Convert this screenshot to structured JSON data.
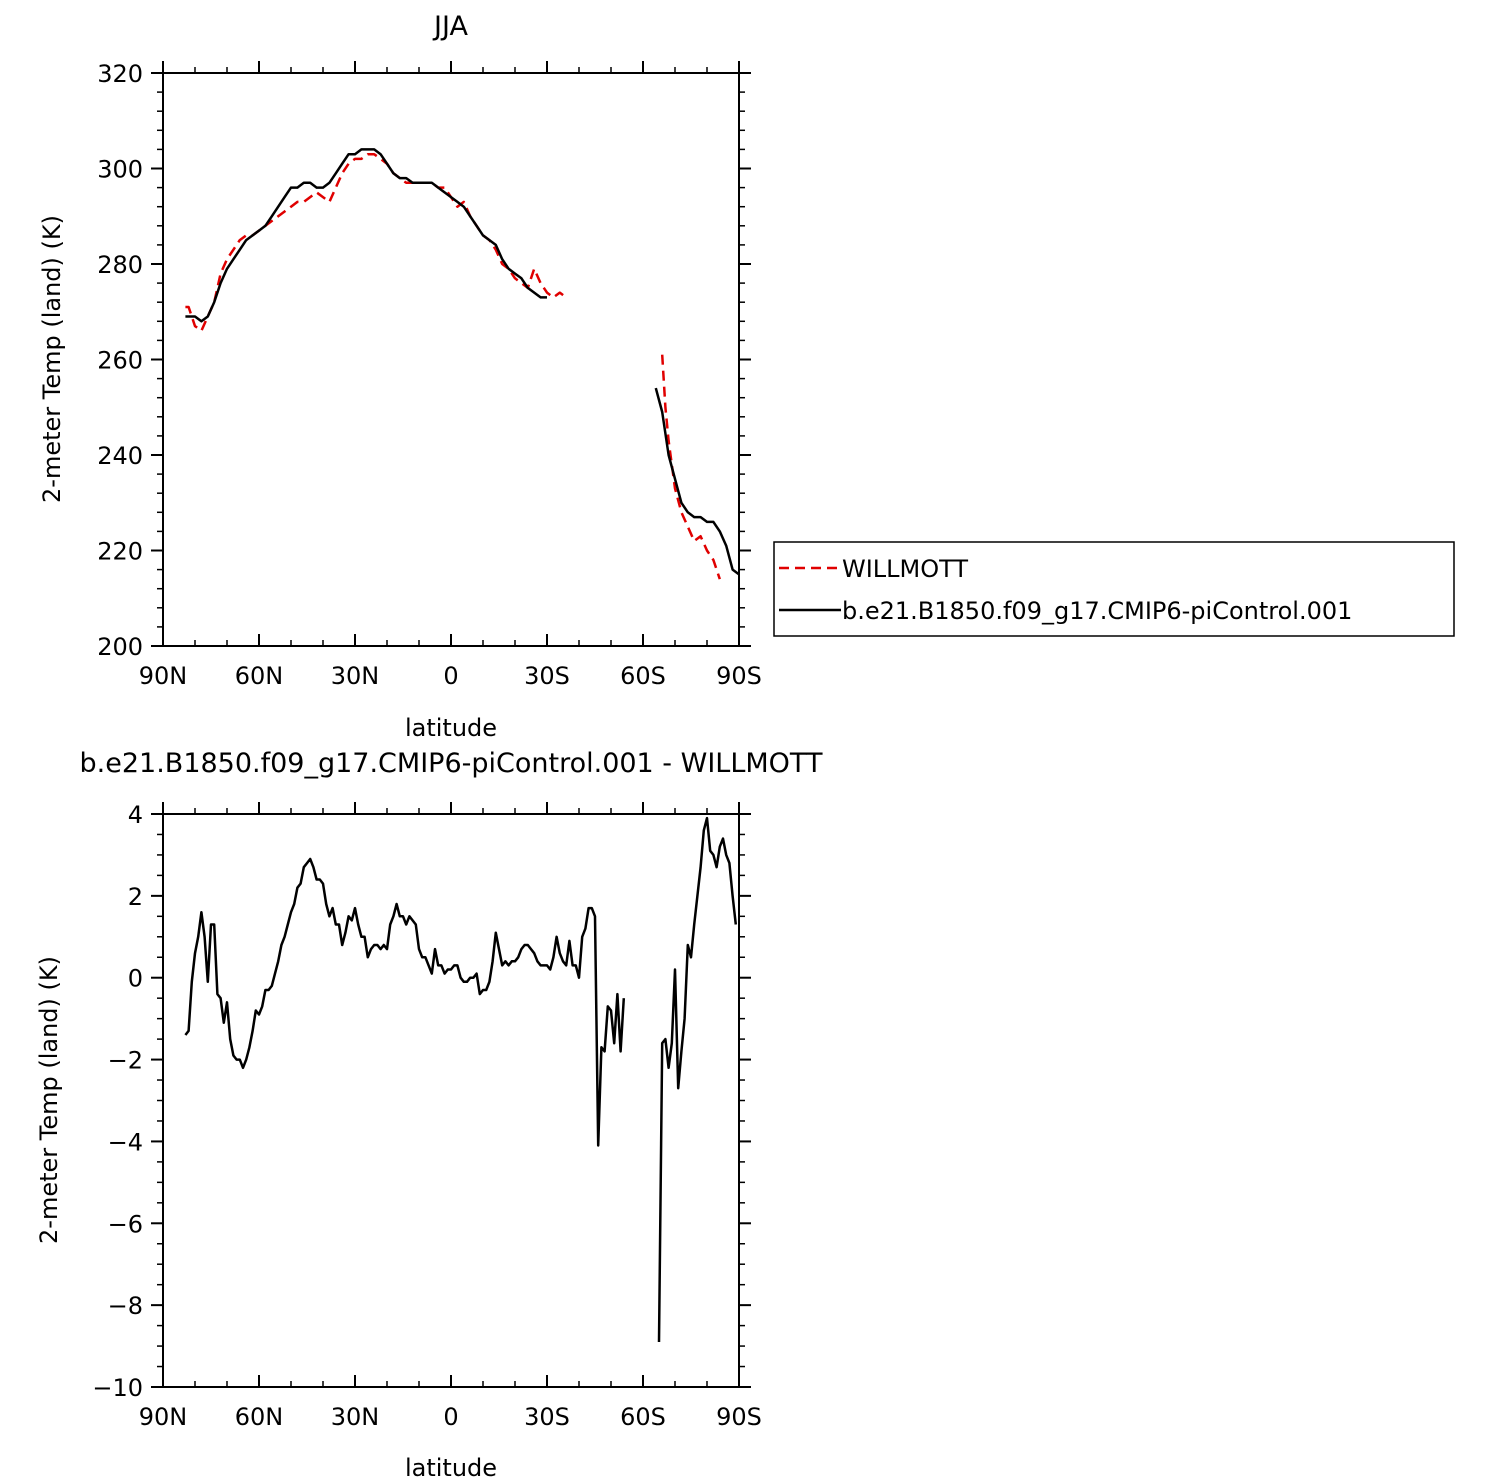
{
  "chart_data": [
    {
      "type": "line",
      "title": "JJA",
      "xlabel": "latitude",
      "ylabel": "2-meter Temp (land) (K)",
      "xlim": [
        90,
        -90
      ],
      "ylim": [
        200,
        320
      ],
      "xticks": [
        90,
        60,
        30,
        0,
        -30,
        -60,
        -90
      ],
      "xtick_labels": [
        "90N",
        "60N",
        "30N",
        "0",
        "30S",
        "60S",
        "90S"
      ],
      "yticks": [
        200,
        220,
        240,
        260,
        280,
        300,
        320
      ],
      "ytick_labels": [
        "200",
        "220",
        "240",
        "260",
        "280",
        "300",
        "320"
      ],
      "grid": false,
      "legend_position": "right",
      "series": [
        {
          "name": "WILLMOTT",
          "color": "#e00000",
          "dash": "dashed",
          "x": [
            83,
            82,
            80,
            78,
            76,
            74,
            72,
            70,
            68,
            66,
            64,
            62,
            60,
            58,
            56,
            54,
            52,
            50,
            48,
            46,
            44,
            42,
            40,
            38,
            36,
            34,
            32,
            30,
            28,
            26,
            24,
            22,
            20,
            18,
            16,
            14,
            12,
            10,
            8,
            6,
            4,
            2,
            0,
            -2,
            -4,
            -6,
            -8,
            -10,
            -12,
            -14,
            -16,
            -18,
            -20,
            -22,
            -24,
            -26,
            -28,
            -30,
            -32,
            -34,
            -36,
            -38,
            -40,
            -42,
            -44,
            -45,
            -46,
            -47,
            -48,
            -50,
            -52,
            -53,
            -54,
            null,
            -66,
            -67,
            -68,
            -70,
            -72,
            -74,
            -76,
            -78,
            -80,
            -82,
            -84,
            -86,
            -88,
            -90
          ],
          "y": [
            271,
            271,
            267,
            266,
            269,
            272,
            278,
            281,
            283,
            285,
            286,
            286,
            287,
            288,
            289,
            290,
            291,
            292,
            293,
            293,
            294,
            295,
            294,
            293,
            296,
            299,
            301,
            302,
            302,
            303,
            303,
            302,
            301,
            299,
            298,
            297,
            297,
            297,
            297,
            297,
            296,
            296,
            294,
            292,
            293,
            290,
            288,
            286,
            285,
            283,
            280,
            279,
            277,
            276,
            275,
            279,
            276,
            274,
            273,
            274,
            273,
            null,
            null,
            null,
            null,
            null,
            null,
            null,
            null,
            null,
            null,
            null,
            null,
            null,
            261,
            250,
            243,
            233,
            228,
            225,
            222,
            223,
            220,
            218,
            214,
            null,
            null,
            null
          ],
          "note": ""
        },
        {
          "name": "b.e21.B1850.f09_g17.CMIP6-piControl.001",
          "color": "#000000",
          "dash": "solid",
          "x": [
            83,
            82,
            80,
            78,
            76,
            74,
            72,
            70,
            68,
            66,
            64,
            62,
            60,
            58,
            56,
            54,
            52,
            50,
            48,
            46,
            44,
            42,
            40,
            38,
            36,
            34,
            32,
            30,
            28,
            26,
            24,
            22,
            20,
            18,
            16,
            14,
            12,
            10,
            8,
            6,
            4,
            2,
            0,
            -2,
            -4,
            -6,
            -8,
            -10,
            -12,
            -14,
            -16,
            -18,
            -20,
            -22,
            -24,
            -26,
            -28,
            -30,
            -32,
            -34,
            -36,
            -38,
            -40,
            -42,
            -44,
            -46,
            -48,
            -50,
            -52,
            -54,
            null,
            -64,
            -66,
            -68,
            -70,
            -72,
            -74,
            -76,
            -78,
            -80,
            -82,
            -84,
            -86,
            -88,
            -90
          ],
          "y": [
            269,
            269,
            269,
            268,
            269,
            272,
            276,
            279,
            281,
            283,
            285,
            286,
            287,
            288,
            290,
            292,
            294,
            296,
            296,
            297,
            297,
            296,
            296,
            297,
            299,
            301,
            303,
            303,
            304,
            304,
            304,
            303,
            301,
            299,
            298,
            298,
            297,
            297,
            297,
            297,
            296,
            295,
            294,
            293,
            292,
            290,
            288,
            286,
            285,
            284,
            281,
            279,
            278,
            277,
            275,
            274,
            273,
            273,
            null,
            null,
            null,
            null,
            null,
            null,
            null,
            null,
            null,
            null,
            null,
            null,
            null,
            254,
            249,
            240,
            235,
            230,
            228,
            227,
            227,
            226,
            226,
            224,
            221,
            216,
            215
          ],
          "note": ""
        }
      ]
    },
    {
      "type": "line",
      "title": "b.e21.B1850.f09_g17.CMIP6-piControl.001 - WILLMOTT",
      "xlabel": "latitude",
      "ylabel": "2-meter Temp (land) (K)",
      "xlim": [
        90,
        -90
      ],
      "ylim": [
        -10,
        4
      ],
      "xticks": [
        90,
        60,
        30,
        0,
        -30,
        -60,
        -90
      ],
      "xtick_labels": [
        "90N",
        "60N",
        "30N",
        "0",
        "30S",
        "60S",
        "90S"
      ],
      "yticks": [
        -10,
        -8,
        -6,
        -4,
        -2,
        0,
        2,
        4
      ],
      "ytick_labels": [
        "−10",
        "−8",
        "−6",
        "−4",
        "−2",
        "0",
        "2",
        "4"
      ],
      "grid": false,
      "series": [
        {
          "color": "#000000",
          "x": [
            83,
            82,
            81,
            80,
            79,
            78,
            77,
            76,
            75,
            74,
            73,
            72,
            71,
            70,
            69,
            68,
            67,
            66,
            65,
            64,
            63,
            62,
            61,
            60,
            59,
            58,
            57,
            56,
            55,
            54,
            53,
            52,
            51,
            50,
            49,
            48,
            47,
            46,
            45,
            44,
            43,
            42,
            41,
            40,
            39,
            38,
            37,
            36,
            35,
            34,
            33,
            32,
            31,
            30,
            29,
            28,
            27,
            26,
            25,
            24,
            23,
            22,
            21,
            20,
            19,
            18,
            17,
            16,
            15,
            14,
            13,
            12,
            11,
            10,
            9,
            8,
            7,
            6,
            5,
            4,
            3,
            2,
            1,
            0,
            -1,
            -2,
            -3,
            -4,
            -5,
            -6,
            -7,
            -8,
            -9,
            -10,
            -11,
            -12,
            -13,
            -14,
            -15,
            -16,
            -17,
            -18,
            -19,
            -20,
            -21,
            -22,
            -23,
            -24,
            -25,
            -26,
            -27,
            -28,
            -29,
            -30,
            -31,
            -32,
            -33,
            -34,
            -35,
            -36,
            -37,
            -38,
            -39,
            -40,
            -41,
            -42,
            -43,
            -44,
            -45,
            -46,
            -47,
            -48,
            -49,
            -50,
            -51,
            -52,
            -53,
            -54,
            null,
            -65,
            -66,
            -67,
            -68,
            -69,
            -70,
            -71,
            -72,
            -73,
            -74,
            -75,
            -76,
            -77,
            -78,
            -79,
            -80,
            -81,
            -82,
            -83,
            -84,
            -85,
            -86,
            -87,
            -88,
            -89,
            -90
          ],
          "y": [
            -1.4,
            -1.3,
            -0.1,
            0.6,
            1.0,
            1.6,
            1.0,
            -0.1,
            1.3,
            1.3,
            -0.4,
            -0.5,
            -1.1,
            -0.6,
            -1.5,
            -1.9,
            -2.0,
            -2.0,
            -2.2,
            -2.0,
            -1.7,
            -1.3,
            -0.8,
            -0.9,
            -0.7,
            -0.3,
            -0.3,
            -0.2,
            0.1,
            0.4,
            0.8,
            1.0,
            1.3,
            1.6,
            1.8,
            2.2,
            2.3,
            2.7,
            2.8,
            2.9,
            2.7,
            2.4,
            2.4,
            2.3,
            1.8,
            1.5,
            1.7,
            1.3,
            1.3,
            0.8,
            1.1,
            1.5,
            1.4,
            1.7,
            1.3,
            1.0,
            1.0,
            0.5,
            0.7,
            0.8,
            0.8,
            0.7,
            0.8,
            0.7,
            1.3,
            1.5,
            1.8,
            1.5,
            1.5,
            1.3,
            1.5,
            1.4,
            1.3,
            0.7,
            0.5,
            0.5,
            0.3,
            0.1,
            0.7,
            0.3,
            0.3,
            0.1,
            0.2,
            0.2,
            0.3,
            0.3,
            0.0,
            -0.1,
            -0.1,
            0.0,
            0.0,
            0.1,
            -0.4,
            -0.3,
            -0.3,
            -0.1,
            0.4,
            1.1,
            0.7,
            0.3,
            0.4,
            0.3,
            0.4,
            0.4,
            0.5,
            0.7,
            0.8,
            0.8,
            0.7,
            0.6,
            0.4,
            0.3,
            0.3,
            0.3,
            0.2,
            0.5,
            1.0,
            0.6,
            0.4,
            0.3,
            0.9,
            0.3,
            0.3,
            0.0,
            1.0,
            1.2,
            1.7,
            1.7,
            1.5,
            -4.1,
            -1.7,
            -1.8,
            -0.7,
            -0.8,
            -1.6,
            -0.4,
            -1.8,
            -0.5,
            null,
            -8.9,
            -1.6,
            -1.5,
            -2.2,
            -1.6,
            0.2,
            -2.7,
            -1.8,
            -1.0,
            0.8,
            0.5,
            1.3,
            2.0,
            2.7,
            3.6,
            3.9,
            3.1,
            3.0,
            2.7,
            3.2,
            3.4,
            3.0,
            2.8,
            2.0,
            1.3,
            null
          ]
        }
      ]
    }
  ],
  "legend": {
    "entries": [
      {
        "label": "WILLMOTT",
        "color": "#e00000",
        "dash": "dashed"
      },
      {
        "label": "b.e21.B1850.f09_g17.CMIP6-piControl.001",
        "color": "#000000",
        "dash": "solid"
      }
    ]
  }
}
